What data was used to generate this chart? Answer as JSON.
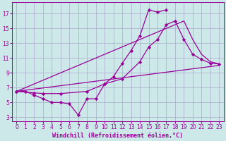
{
  "background_color": "#cce8e8",
  "grid_color": "#aaaacc",
  "line_color": "#990099",
  "marker_color": "#990099",
  "xlabel": "Windchill (Refroidissement éolien,°C)",
  "xlim": [
    -0.5,
    23.5
  ],
  "ylim": [
    2.5,
    18.5
  ],
  "xticks": [
    0,
    1,
    2,
    3,
    4,
    5,
    6,
    7,
    8,
    9,
    10,
    11,
    12,
    13,
    14,
    15,
    16,
    17,
    18,
    19,
    20,
    21,
    22,
    23
  ],
  "yticks": [
    3,
    5,
    7,
    9,
    11,
    13,
    15,
    17
  ],
  "lines": [
    {
      "x": [
        0,
        1,
        2,
        3,
        4,
        5,
        6,
        7,
        8,
        9,
        10,
        11,
        12,
        13,
        14,
        15,
        16,
        17
      ],
      "y": [
        6.5,
        6.5,
        6.0,
        5.5,
        5.0,
        5.0,
        4.8,
        3.3,
        5.5,
        5.5,
        7.5,
        8.5,
        10.3,
        12.0,
        14.0,
        17.5,
        17.2,
        17.5
      ],
      "has_markers": true,
      "lw": 0.9
    },
    {
      "x": [
        0,
        2,
        3,
        5,
        8,
        10,
        12,
        14,
        15,
        16,
        17,
        18,
        19,
        20,
        21,
        22,
        23
      ],
      "y": [
        6.5,
        6.3,
        6.2,
        6.2,
        6.5,
        7.5,
        8.2,
        10.5,
        12.5,
        13.5,
        15.5,
        16.0,
        13.5,
        11.5,
        10.8,
        10.3,
        10.2
      ],
      "has_markers": true,
      "lw": 0.9
    },
    {
      "x": [
        0,
        23
      ],
      "y": [
        6.5,
        10.0
      ],
      "has_markers": false,
      "lw": 0.9
    },
    {
      "x": [
        0,
        19,
        20,
        21,
        22,
        23
      ],
      "y": [
        6.5,
        16.0,
        13.5,
        11.5,
        10.5,
        10.2
      ],
      "has_markers": false,
      "lw": 0.9
    }
  ],
  "tick_fontsize": 5.5,
  "label_fontsize": 6,
  "figsize": [
    3.2,
    2.0
  ],
  "dpi": 100
}
